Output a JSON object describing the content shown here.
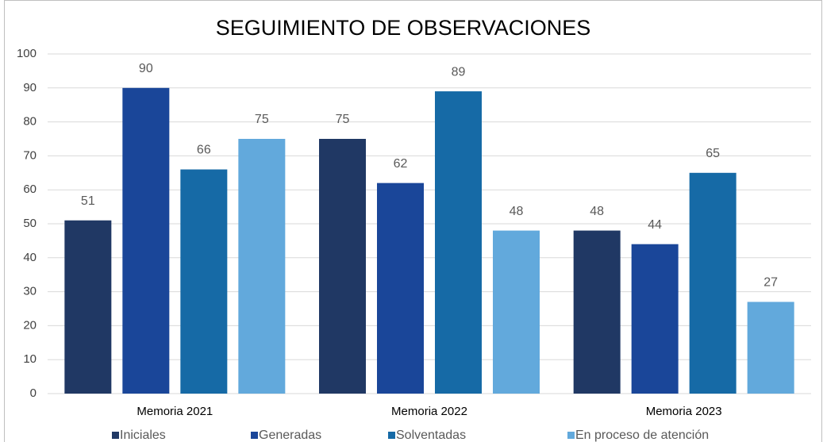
{
  "chart_data": {
    "type": "bar",
    "title": "SEGUIMIENTO DE OBSERVACIONES",
    "categories": [
      "Memoria 2021",
      "Memoria 2022",
      "Memoria 2023"
    ],
    "series": [
      {
        "name": "Iniciales",
        "color": "#203864",
        "values": [
          51,
          75,
          48
        ]
      },
      {
        "name": "Generadas",
        "color": "#1a4699",
        "values": [
          90,
          62,
          44
        ]
      },
      {
        "name": "Solventadas",
        "color": "#166aa6",
        "values": [
          66,
          89,
          65
        ]
      },
      {
        "name": "En proceso de atención",
        "color": "#62a9dc",
        "values": [
          75,
          48,
          27
        ]
      }
    ],
    "ylim": [
      0,
      100
    ],
    "yticks": [
      0,
      10,
      20,
      30,
      40,
      50,
      60,
      70,
      80,
      90,
      100
    ],
    "grid": true,
    "legend": "bottom"
  }
}
